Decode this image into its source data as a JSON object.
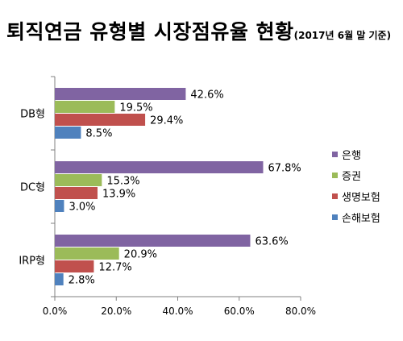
{
  "chart_data": {
    "type": "bar",
    "orientation": "horizontal",
    "title": "퇴직연금 유형별 시장점유율 현황",
    "subtitle": "(2017년 6월 말 기준)",
    "categories": [
      "DB형",
      "DC형",
      "IRP형"
    ],
    "series": [
      {
        "name": "은행",
        "color": "#8064A2",
        "values": [
          42.6,
          67.8,
          63.6
        ],
        "labels": [
          "42.6%",
          "67.8%",
          "63.6%"
        ]
      },
      {
        "name": "증권",
        "color": "#9BBB59",
        "values": [
          19.5,
          15.3,
          20.9
        ],
        "labels": [
          "19.5%",
          "15.3%",
          "20.9%"
        ]
      },
      {
        "name": "생명보험",
        "color": "#C0504D",
        "values": [
          29.4,
          13.9,
          12.7
        ],
        "labels": [
          "29.4%",
          "13.9%",
          "12.7%"
        ]
      },
      {
        "name": "손해보험",
        "color": "#4F81BD",
        "values": [
          8.5,
          3.0,
          2.8
        ],
        "labels": [
          "8.5%",
          "3.0%",
          "2.8%"
        ]
      }
    ],
    "xlim": [
      0,
      80
    ],
    "xticks": [
      0,
      20,
      40,
      60,
      80
    ],
    "xtick_labels": [
      "0.0%",
      "20.0%",
      "40.0%",
      "60.0%",
      "80.0%"
    ],
    "grid": false,
    "legend": "right"
  }
}
